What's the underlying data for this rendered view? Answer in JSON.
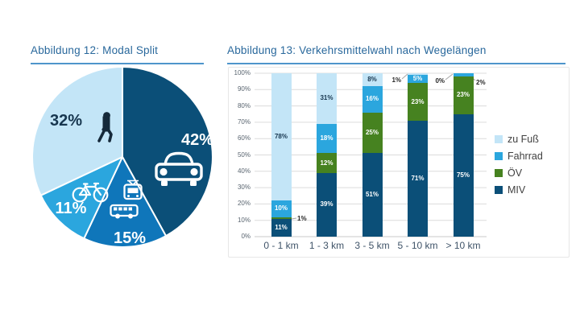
{
  "figure12": {
    "title": "Abbildung 12: Modal Split"
  },
  "figure13": {
    "title": "Abbildung 13: Verkehrsmittelwahl nach Wegelängen"
  },
  "colors": {
    "title_text": "#29689C",
    "title_rule": "#4E95CB",
    "grid": "#DCDCDC",
    "frame": "#E7E7E7",
    "leader_line": "#A6A6A6",
    "axis_tick_label": "#5A6570",
    "category_label": "#3F5368",
    "legend_label": "#404040",
    "zu_fuss": "#C3E5F7",
    "fahrrad": "#2BA6DE",
    "oev_bar_green": "#468220",
    "oev_pie_blue": "#0F76BA",
    "miv": "#0B4F78",
    "dark_label_on_light": "#17364F"
  },
  "chart_data": [
    {
      "type": "pie",
      "title": "Abbildung 12: Modal Split",
      "unit": "%",
      "start_angle_deg": 0,
      "direction": "clockwise",
      "slices": [
        {
          "label": "MIV",
          "value": 42,
          "color": "#0B4F78",
          "text_color": "#FFFFFF",
          "icon": "car-icon"
        },
        {
          "label": "ÖV",
          "value": 15,
          "color": "#0F76BA",
          "text_color": "#FFFFFF",
          "icon": "train-bus-icon"
        },
        {
          "label": "Fahrrad",
          "value": 11,
          "color": "#2BA6DE",
          "text_color": "#FFFFFF",
          "icon": "bicycle-icon"
        },
        {
          "label": "zu Fuß",
          "value": 32,
          "color": "#C3E5F7",
          "text_color": "#17364F",
          "icon": "pedestrian-icon"
        }
      ]
    },
    {
      "type": "bar",
      "stacked": true,
      "title": "Abbildung 13: Verkehrsmittelwahl nach Wegelängen",
      "categories": [
        "0 - 1 km",
        "1 - 3 km",
        "3 - 5 km",
        "5 - 10 km",
        "> 10 km"
      ],
      "series": [
        {
          "name": "zu Fuß",
          "color": "#C3E5F7",
          "text_color": "#17364F",
          "values": [
            78,
            31,
            8,
            1,
            0
          ]
        },
        {
          "name": "Fahrrad",
          "color": "#2BA6DE",
          "text_color": "#FFFFFF",
          "values": [
            10,
            18,
            16,
            5,
            2
          ]
        },
        {
          "name": "ÖV",
          "color": "#468220",
          "text_color": "#FFFFFF",
          "values": [
            1,
            12,
            25,
            23,
            23
          ]
        },
        {
          "name": "MIV",
          "color": "#0B4F78",
          "text_color": "#FFFFFF",
          "values": [
            11,
            39,
            51,
            71,
            75
          ]
        }
      ],
      "ylim": [
        0,
        100
      ],
      "ytick_step": 10,
      "yticks": [
        "0%",
        "10%",
        "20%",
        "30%",
        "40%",
        "50%",
        "60%",
        "70%",
        "80%",
        "90%",
        "100%"
      ],
      "grid": true,
      "legend_position": "right",
      "legend": [
        "zu Fuß",
        "Fahrrad",
        "ÖV",
        "MIV"
      ]
    }
  ]
}
